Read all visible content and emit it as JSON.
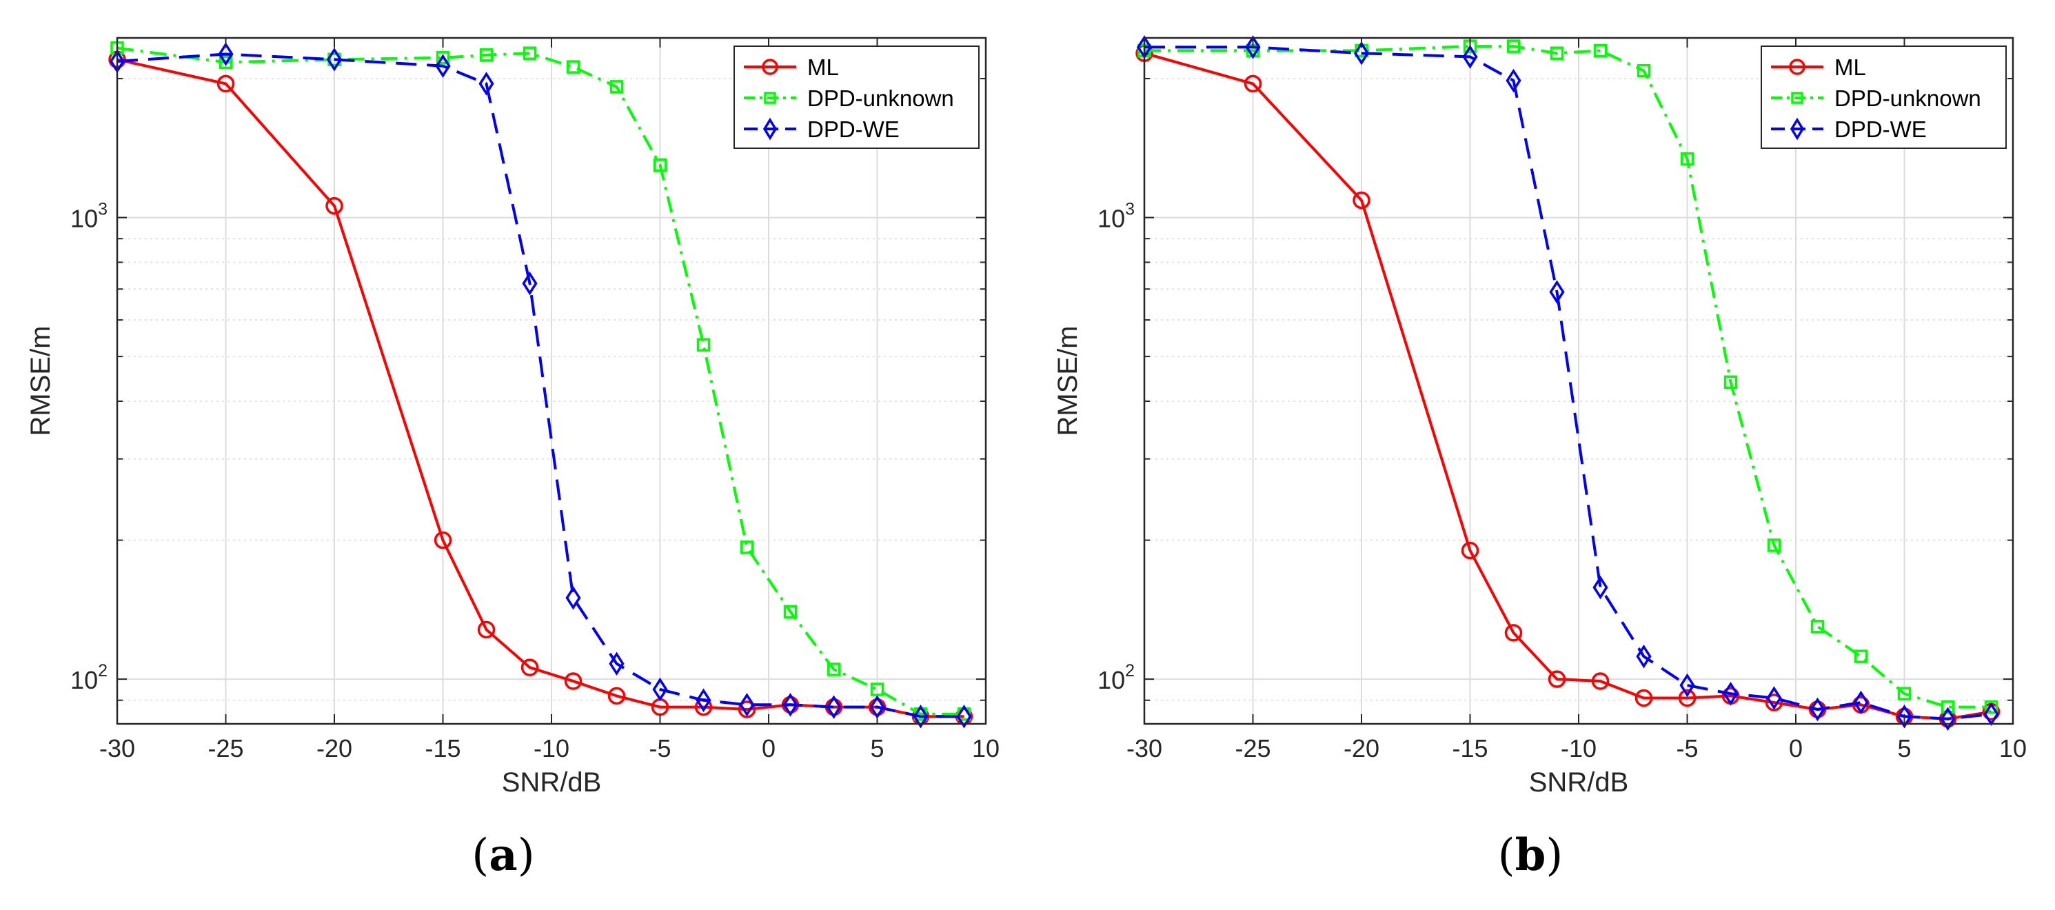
{
  "colors": {
    "ML": "#ff0000",
    "DPD-unknown": "#00ff00",
    "DPD-WE": "#0000ff",
    "grid": "#dcdcdc",
    "axis": "#262626"
  },
  "chart_data": [
    {
      "type": "line",
      "panel_label": "(a)",
      "xlabel": "SNR/dB",
      "ylabel": "RMSE/m",
      "xlim": [
        -30,
        10
      ],
      "ylim": [
        80,
        2450
      ],
      "yscale": "log",
      "grid": true,
      "legend_position": "top-right",
      "x_ticks": [
        -30,
        -25,
        -20,
        -15,
        -10,
        -5,
        0,
        5,
        10
      ],
      "x_tick_labels": [
        "-30",
        "-25",
        "-20",
        "-15",
        "-10",
        "-5",
        "0",
        "5",
        "10"
      ],
      "y_ticks": [
        {
          "value": 1000,
          "base": "10",
          "exp": "3"
        },
        {
          "value": 100,
          "base": "10",
          "exp": "2"
        }
      ],
      "series": [
        {
          "name": "ML",
          "marker": "circle",
          "line": "solid",
          "x": [
            -30,
            -25,
            -20,
            -15,
            -13,
            -11,
            -9,
            -7,
            -5,
            -3,
            -1,
            1,
            3,
            5,
            7,
            9
          ],
          "y": [
            2200,
            1950,
            1060,
            200,
            128,
            106,
            99,
            92,
            87,
            87,
            86,
            88,
            87,
            87,
            83,
            83
          ]
        },
        {
          "name": "DPD-unknown",
          "marker": "square",
          "line": "dashdot",
          "x": [
            -30,
            -25,
            -20,
            -15,
            -13,
            -11,
            -9,
            -7,
            -5,
            -3,
            -1,
            1,
            3,
            5,
            7,
            9
          ],
          "y": [
            2330,
            2170,
            2200,
            2220,
            2250,
            2270,
            2120,
            1920,
            1300,
            530,
            193,
            140,
            105,
            95,
            84,
            84
          ]
        },
        {
          "name": "DPD-WE",
          "marker": "diamond",
          "line": "dashed",
          "x": [
            -30,
            -25,
            -20,
            -15,
            -13,
            -11,
            -9,
            -7,
            -5,
            -3,
            -1,
            1,
            3,
            5,
            7,
            9
          ],
          "y": [
            2180,
            2260,
            2200,
            2130,
            1950,
            720,
            150,
            108,
            95,
            90,
            88,
            88,
            87,
            87,
            83,
            83
          ]
        }
      ]
    },
    {
      "type": "line",
      "panel_label": "(b)",
      "xlabel": "SNR/dB",
      "ylabel": "RMSE/m",
      "xlim": [
        -30,
        10
      ],
      "ylim": [
        80,
        2450
      ],
      "yscale": "log",
      "grid": true,
      "legend_position": "top-right",
      "x_ticks": [
        -30,
        -25,
        -20,
        -15,
        -10,
        -5,
        0,
        5,
        10
      ],
      "x_tick_labels": [
        "-30",
        "-25",
        "-20",
        "-15",
        "-10",
        "-5",
        "0",
        "5",
        "10"
      ],
      "y_ticks": [
        {
          "value": 1000,
          "base": "10",
          "exp": "3"
        },
        {
          "value": 100,
          "base": "10",
          "exp": "2"
        }
      ],
      "series": [
        {
          "name": "ML",
          "marker": "circle",
          "line": "solid",
          "x": [
            -30,
            -25,
            -20,
            -15,
            -13,
            -11,
            -9,
            -7,
            -5,
            -3,
            -1,
            1,
            3,
            5,
            7,
            9
          ],
          "y": [
            2270,
            1950,
            1090,
            190,
            126,
            100,
            99,
            91,
            91,
            92,
            89,
            86,
            88,
            83,
            82,
            85
          ]
        },
        {
          "name": "DPD-unknown",
          "marker": "square",
          "line": "dashdot",
          "x": [
            -30,
            -25,
            -20,
            -15,
            -13,
            -11,
            -9,
            -7,
            -5,
            -3,
            -1,
            1,
            3,
            5,
            7,
            9
          ],
          "y": [
            2300,
            2300,
            2300,
            2350,
            2350,
            2270,
            2300,
            2080,
            1340,
            440,
            195,
            130,
            112,
            93,
            87,
            87
          ]
        },
        {
          "name": "DPD-WE",
          "marker": "diamond",
          "line": "dashed",
          "x": [
            -30,
            -25,
            -20,
            -15,
            -13,
            -11,
            -9,
            -7,
            -5,
            -3,
            -1,
            1,
            3,
            5,
            7,
            9
          ],
          "y": [
            2340,
            2340,
            2270,
            2230,
            1980,
            690,
            158,
            112,
            97,
            93,
            91,
            86,
            89,
            83,
            82,
            84
          ]
        }
      ]
    }
  ]
}
